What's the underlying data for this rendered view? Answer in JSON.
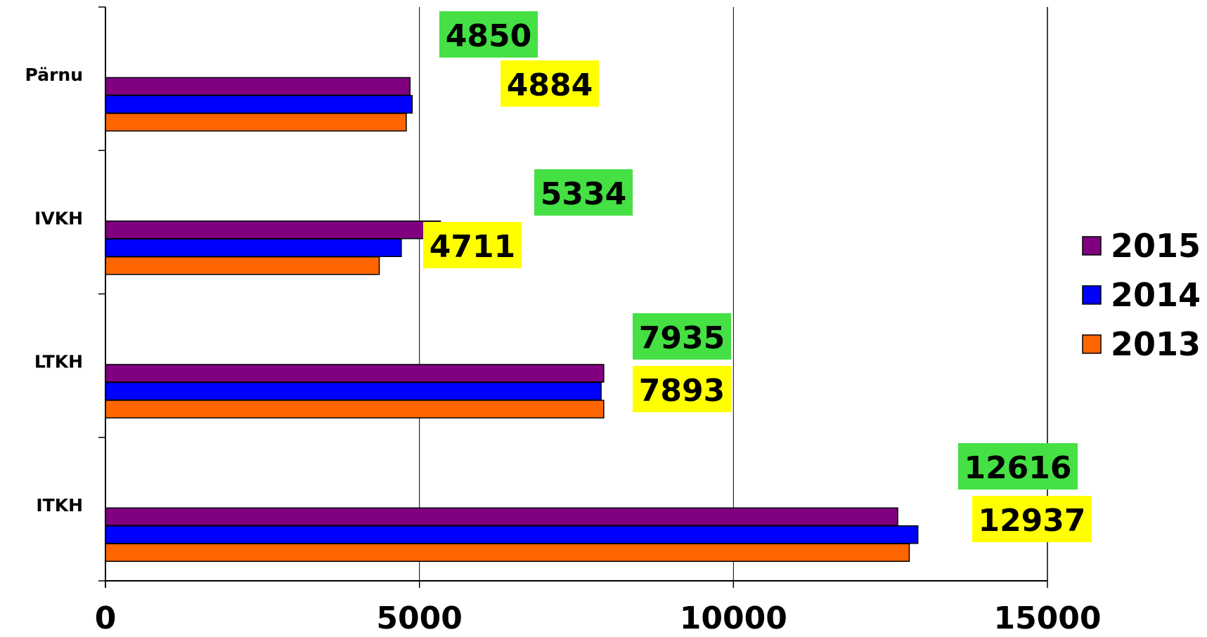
{
  "chart_data": {
    "type": "bar",
    "orientation": "horizontal",
    "categories": [
      "Pärnu",
      "IVKH",
      "LTKH",
      "ITKH"
    ],
    "series": [
      {
        "name": "2015",
        "color": "#800080",
        "values": [
          4850,
          5334,
          7935,
          12616
        ]
      },
      {
        "name": "2014",
        "color": "#0000ff",
        "values": [
          4884,
          4711,
          7893,
          12937
        ]
      },
      {
        "name": "2013",
        "color": "#ff6600",
        "values": [
          4790,
          4360,
          7935,
          12800
        ]
      }
    ],
    "data_labels": [
      {
        "category": "Pärnu",
        "series": "2015",
        "text": "4850",
        "color": "#44e044"
      },
      {
        "category": "Pärnu",
        "series": "2014",
        "text": "4884",
        "color": "#ffff00"
      },
      {
        "category": "IVKH",
        "series": "2015",
        "text": "5334",
        "color": "#44e044"
      },
      {
        "category": "IVKH",
        "series": "2014",
        "text": "4711",
        "color": "#ffff00"
      },
      {
        "category": "LTKH",
        "series": "2015",
        "text": "7935",
        "color": "#44e044"
      },
      {
        "category": "LTKH",
        "series": "2014",
        "text": "7893",
        "color": "#ffff00"
      },
      {
        "category": "ITKH",
        "series": "2015",
        "text": "12616",
        "color": "#44e044"
      },
      {
        "category": "ITKH",
        "series": "2014",
        "text": "12937",
        "color": "#ffff00"
      }
    ],
    "xlim": [
      0,
      15000
    ],
    "xticks": [
      "0",
      "5000",
      "10000",
      "15000"
    ],
    "grid": true,
    "legend_position": "right",
    "title": "",
    "xlabel": "",
    "ylabel": ""
  }
}
